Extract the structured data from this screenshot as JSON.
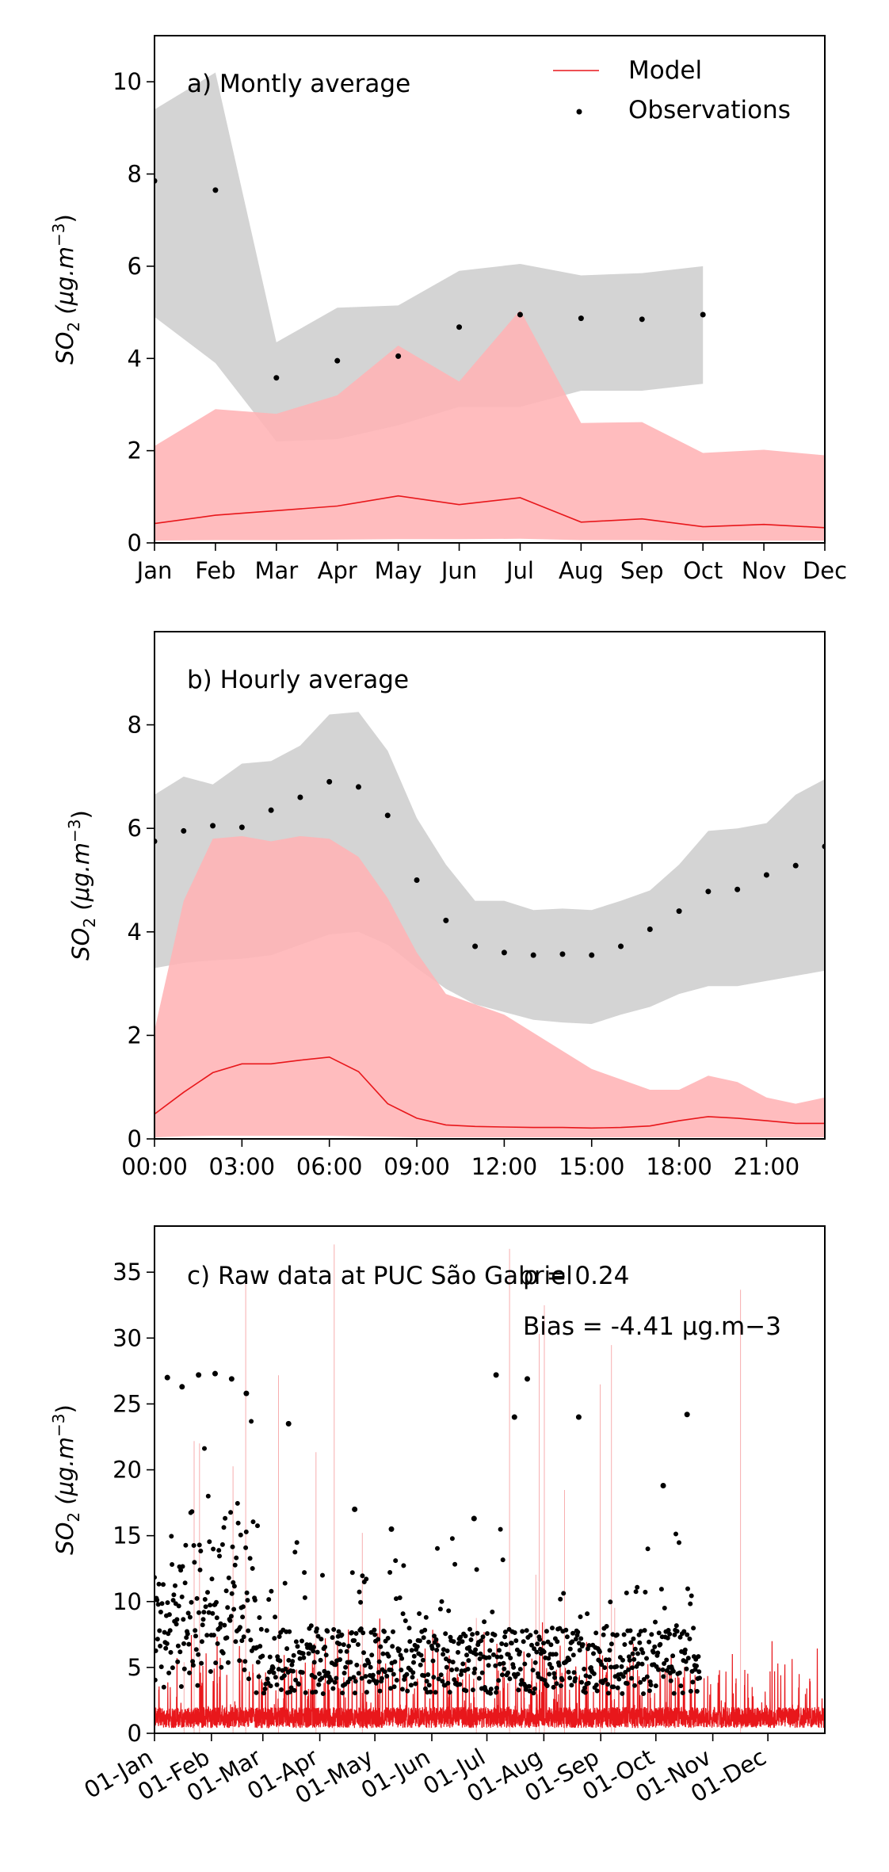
{
  "colors": {
    "model": "#e8171b",
    "model_band": "#ffb3b5",
    "obs": "#000000",
    "obs_band": "#d4d4d4"
  },
  "legend": {
    "model_label": "Model",
    "obs_label": "Observations",
    "placement": "top-right"
  },
  "chart_data": [
    {
      "type": "line",
      "title": "a) Montly average",
      "ylabel": "SO2 (μg.m−3)",
      "ylabel_parts": {
        "base": "SO",
        "sub": "2",
        "unit": "(μg.m",
        "exp": "−3",
        "close": ")"
      },
      "ylim": [
        0,
        11
      ],
      "yticks": [
        0,
        2,
        4,
        6,
        8,
        10
      ],
      "categories": [
        "Jan",
        "Feb",
        "Mar",
        "Apr",
        "May",
        "Jun",
        "Jul",
        "Aug",
        "Sep",
        "Oct",
        "Nov",
        "Dec"
      ],
      "series": [
        {
          "name": "Model",
          "kind": "line",
          "values": [
            0.42,
            0.6,
            0.7,
            0.8,
            1.02,
            0.83,
            0.98,
            0.45,
            0.52,
            0.35,
            0.4,
            0.33
          ]
        },
        {
          "name": "Observations",
          "kind": "points",
          "values": [
            7.85,
            7.65,
            3.58,
            3.95,
            4.05,
            4.68,
            4.95,
            4.87,
            4.85,
            4.95,
            null,
            null
          ]
        }
      ],
      "bands": [
        {
          "of": "Observations",
          "lower": [
            4.9,
            3.9,
            2.2,
            2.25,
            2.55,
            2.95,
            2.95,
            3.3,
            3.3,
            3.45,
            null,
            null
          ],
          "upper": [
            9.4,
            10.2,
            4.35,
            5.1,
            5.15,
            5.9,
            6.05,
            5.8,
            5.85,
            6.0,
            null,
            null
          ]
        },
        {
          "of": "Model",
          "lower": [
            0.05,
            0.06,
            0.06,
            0.07,
            0.08,
            0.08,
            0.09,
            0.06,
            0.06,
            0.05,
            0.05,
            0.05
          ],
          "upper": [
            2.1,
            2.9,
            2.8,
            3.2,
            4.28,
            3.5,
            5.05,
            2.6,
            2.62,
            1.95,
            2.02,
            1.9
          ]
        }
      ],
      "grid": false
    },
    {
      "type": "line",
      "title": "b) Hourly average",
      "ylabel": "SO2 (μg.m−3)",
      "ylim": [
        0,
        9.8
      ],
      "yticks": [
        0,
        2,
        4,
        6,
        8
      ],
      "x": [
        0,
        1,
        2,
        3,
        4,
        5,
        6,
        7,
        8,
        9,
        10,
        11,
        12,
        13,
        14,
        15,
        16,
        17,
        18,
        19,
        20,
        21,
        22,
        23
      ],
      "xticks": [
        0,
        3,
        6,
        9,
        12,
        15,
        18,
        21
      ],
      "xtick_labels": [
        "00:00",
        "03:00",
        "06:00",
        "09:00",
        "12:00",
        "15:00",
        "18:00",
        "21:00"
      ],
      "series": [
        {
          "name": "Model",
          "kind": "line",
          "values": [
            0.48,
            0.9,
            1.28,
            1.45,
            1.45,
            1.52,
            1.58,
            1.3,
            0.68,
            0.4,
            0.27,
            0.24,
            0.23,
            0.22,
            0.22,
            0.21,
            0.22,
            0.25,
            0.35,
            0.43,
            0.4,
            0.35,
            0.3,
            0.3
          ]
        },
        {
          "name": "Observations",
          "kind": "points",
          "values": [
            5.75,
            5.95,
            6.05,
            6.02,
            6.35,
            6.6,
            6.9,
            6.8,
            6.25,
            5.0,
            4.22,
            3.72,
            3.6,
            3.55,
            3.57,
            3.55,
            3.72,
            4.05,
            4.4,
            4.78,
            4.82,
            5.1,
            5.28,
            5.65
          ]
        }
      ],
      "bands": [
        {
          "of": "Observations",
          "lower": [
            3.3,
            3.4,
            3.45,
            3.48,
            3.55,
            3.75,
            3.95,
            4.0,
            3.75,
            3.3,
            2.9,
            2.6,
            2.45,
            2.3,
            2.25,
            2.22,
            2.4,
            2.55,
            2.8,
            2.95,
            2.95,
            3.05,
            3.15,
            3.25
          ],
          "upper": [
            6.65,
            7.0,
            6.85,
            7.25,
            7.3,
            7.6,
            8.2,
            8.25,
            7.5,
            6.2,
            5.3,
            4.6,
            4.6,
            4.42,
            4.45,
            4.42,
            4.6,
            4.8,
            5.3,
            5.95,
            6.0,
            6.1,
            6.65,
            6.95
          ]
        },
        {
          "of": "Model",
          "lower": [
            0.03,
            0.05,
            0.06,
            0.06,
            0.06,
            0.06,
            0.06,
            0.05,
            0.04,
            0.03,
            0.03,
            0.03,
            0.03,
            0.03,
            0.03,
            0.03,
            0.03,
            0.03,
            0.03,
            0.03,
            0.03,
            0.03,
            0.03,
            0.03
          ],
          "upper": [
            2.1,
            4.6,
            5.8,
            5.85,
            5.75,
            5.85,
            5.8,
            5.45,
            4.65,
            3.6,
            2.8,
            2.6,
            2.4,
            2.05,
            1.7,
            1.35,
            1.15,
            0.95,
            0.95,
            1.22,
            1.1,
            0.8,
            0.68,
            0.8
          ]
        }
      ],
      "grid": false
    },
    {
      "type": "scatter",
      "title": "c) Raw data at PUC São Gabriel",
      "annotations": [
        "ρ = 0.24",
        "Bias = -4.41 μg.m−3"
      ],
      "ylabel": "SO2 (μg.m−3)",
      "ylim": [
        0,
        38.5
      ],
      "yticks": [
        0,
        5,
        10,
        15,
        20,
        25,
        30,
        35
      ],
      "x_unit": "date",
      "xlim": [
        "01-Jan",
        "31-Dec"
      ],
      "xtick_labels": [
        "01-Jan",
        "01-Feb",
        "01-Mar",
        "01-Apr",
        "01-May",
        "01-Jun",
        "01-Jul",
        "01-Aug",
        "01-Sep",
        "01-Oct",
        "01-Nov",
        "01-Dec"
      ],
      "xtick_days": [
        0,
        31,
        59,
        90,
        120,
        151,
        181,
        212,
        243,
        273,
        304,
        334
      ],
      "obs_coverage": [
        "01-Jan",
        "25-Oct"
      ],
      "notable_observations": [
        {
          "date": "08-Jan",
          "value": 27.0
        },
        {
          "date": "16-Jan",
          "value": 26.3
        },
        {
          "date": "25-Jan",
          "value": 27.2
        },
        {
          "date": "03-Feb",
          "value": 27.3
        },
        {
          "date": "12-Feb",
          "value": 26.9
        },
        {
          "date": "20-Feb",
          "value": 25.8
        },
        {
          "date": "15-Mar",
          "value": 23.5
        },
        {
          "date": "20-Apr",
          "value": 17.0
        },
        {
          "date": "10-May",
          "value": 15.5
        },
        {
          "date": "24-Jun",
          "value": 16.3
        },
        {
          "date": "06-Jul",
          "value": 27.2
        },
        {
          "date": "16-Jul",
          "value": 24.0
        },
        {
          "date": "23-Jul",
          "value": 26.9
        },
        {
          "date": "20-Aug",
          "value": 24.0
        },
        {
          "date": "05-Oct",
          "value": 18.8
        },
        {
          "date": "18-Oct",
          "value": 24.2
        }
      ],
      "series": [
        {
          "name": "Model",
          "kind": "line",
          "typical_range": [
            0,
            3
          ],
          "peak": 38.5
        },
        {
          "name": "Observations",
          "kind": "points",
          "typical_range": [
            2,
            10
          ]
        }
      ],
      "grid": false
    }
  ]
}
